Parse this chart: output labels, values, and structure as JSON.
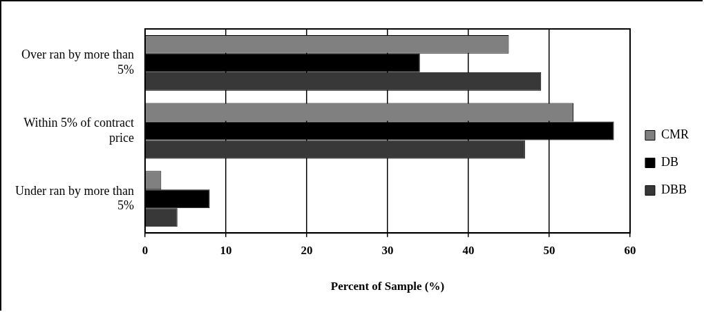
{
  "chart_data": {
    "type": "bar",
    "orientation": "horizontal",
    "xlabel": "Percent of Sample (%)",
    "categories": [
      "Over ran by more than 5%",
      "Within 5% of contract price",
      "Under ran by more than 5%"
    ],
    "series": [
      {
        "name": "CMR",
        "color": "#808080",
        "values": [
          45,
          53,
          2
        ]
      },
      {
        "name": "DB",
        "color": "#000000",
        "values": [
          34,
          58,
          8
        ]
      },
      {
        "name": "DBB",
        "color": "#383838",
        "values": [
          49,
          47,
          4
        ]
      }
    ],
    "xlim": [
      0,
      60
    ],
    "xticks": [
      0,
      10,
      20,
      30,
      40,
      50,
      60
    ],
    "grid": "x",
    "legend": "right"
  }
}
